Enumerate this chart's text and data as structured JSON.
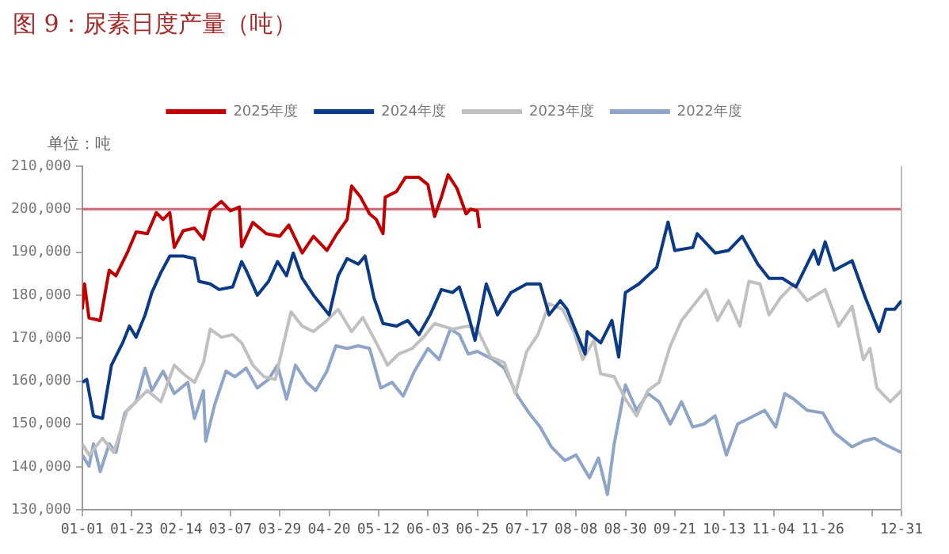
{
  "chart_data": {
    "type": "line",
    "title": "图 9：尿素日度产量（吨）",
    "annotations": [
      "单位：吨"
    ],
    "legend": "top",
    "marker": "none",
    "grid": false,
    "xlim": [
      "--01-01",
      "--12-31"
    ],
    "xticks": [
      {
        "value": "--01-01",
        "label": "01-01"
      },
      {
        "value": "--01-23",
        "label": "01-23"
      },
      {
        "value": "--02-14",
        "label": "02-14"
      },
      {
        "value": "--03-07",
        "label": "03-07"
      },
      {
        "value": "--03-29",
        "label": "03-29"
      },
      {
        "value": "--04-20",
        "label": "04-20"
      },
      {
        "value": "--05-12",
        "label": "05-12"
      },
      {
        "value": "--06-03",
        "label": "06-03"
      },
      {
        "value": "--06-25",
        "label": "06-25"
      },
      {
        "value": "--07-17",
        "label": "07-17"
      },
      {
        "value": "--08-08",
        "label": "08-08"
      },
      {
        "value": "--08-30",
        "label": "08-30"
      },
      {
        "value": "--09-21",
        "label": "09-21"
      },
      {
        "value": "--10-13",
        "label": "10-13"
      },
      {
        "value": "--11-04",
        "label": "11-04"
      },
      {
        "value": "--11-26",
        "label": "11-26"
      },
      {
        "value": "--12-18",
        "label": null
      },
      {
        "value": "--12-31",
        "label": "12-31"
      }
    ],
    "ylim": [
      130000,
      210000
    ],
    "yticks": [
      {
        "value": 130000,
        "label": "130,000"
      },
      {
        "value": 140000,
        "label": "140,000"
      },
      {
        "value": 150000,
        "label": "150,000"
      },
      {
        "value": 160000,
        "label": "160,000"
      },
      {
        "value": 170000,
        "label": "170,000"
      },
      {
        "value": 180000,
        "label": "180,000"
      },
      {
        "value": 190000,
        "label": "190,000"
      },
      {
        "value": 200000,
        "label": "200,000"
      },
      {
        "value": 210000,
        "label": "210,000"
      }
    ],
    "ref_lines": [
      {
        "axis": "y",
        "value": 200000,
        "color": "#cc6670"
      }
    ],
    "series": [
      {
        "name": "2025年度",
        "color": "#c00000",
        "x": [
          "--01-01",
          "--01-02",
          "--01-04",
          "--01-09",
          "--01-13",
          "--01-16",
          "--01-21",
          "--01-25",
          "--01-30",
          "--02-03",
          "--02-06",
          "--02-09",
          "--02-11",
          "--02-15",
          "--02-20",
          "--02-24",
          "--02-27",
          "--03-03",
          "--03-07",
          "--03-11",
          "--03-12",
          "--03-17",
          "--03-23",
          "--03-29",
          "--04-02",
          "--04-08",
          "--04-13",
          "--04-19",
          "--04-23",
          "--04-28",
          "--04-30",
          "--05-04",
          "--05-08",
          "--05-11",
          "--05-14",
          "--05-15",
          "--05-20",
          "--05-24",
          "--05-30",
          "--06-03",
          "--06-06",
          "--06-09",
          "--06-12",
          "--06-16",
          "--06-20",
          "--06-22",
          "--06-25",
          "--06-26"
        ],
        "values": [
          176700,
          182600,
          174700,
          174100,
          185800,
          184500,
          189800,
          194700,
          194300,
          199200,
          197600,
          199200,
          191100,
          195000,
          195600,
          193000,
          199600,
          201800,
          199600,
          200500,
          191300,
          196900,
          194300,
          193700,
          196300,
          189800,
          193700,
          190400,
          193900,
          197600,
          205400,
          202800,
          198900,
          197600,
          194300,
          202800,
          204100,
          207400,
          207400,
          205700,
          198300,
          202800,
          208000,
          204800,
          198900,
          200000,
          199600,
          195600
        ]
      },
      {
        "name": "2024年度",
        "color": "#0b3a86",
        "x": [
          "--01-01",
          "--01-03",
          "--01-06",
          "--01-10",
          "--01-14",
          "--01-19",
          "--01-22",
          "--01-25",
          "--01-29",
          "--02-01",
          "--02-05",
          "--02-09",
          "--02-15",
          "--02-20",
          "--02-22",
          "--02-27",
          "--03-02",
          "--03-08",
          "--03-12",
          "--03-14",
          "--03-19",
          "--03-24",
          "--03-28",
          "--04-01",
          "--04-04",
          "--04-08",
          "--04-13",
          "--04-20",
          "--04-24",
          "--04-28",
          "--05-03",
          "--05-06",
          "--05-10",
          "--05-14",
          "--05-20",
          "--05-25",
          "--05-30",
          "--06-04",
          "--06-09",
          "--06-14",
          "--06-17",
          "--06-21",
          "--06-24",
          "--06-29",
          "--07-04",
          "--07-10",
          "--07-17",
          "--07-23",
          "--07-27",
          "--08-01",
          "--08-04",
          "--08-12",
          "--08-13",
          "--08-19",
          "--08-24",
          "--08-27",
          "--08-30",
          "--09-05",
          "--09-13",
          "--09-18",
          "--09-21",
          "--09-29",
          "--10-01",
          "--10-09",
          "--10-15",
          "--10-21",
          "--10-28",
          "--11-02",
          "--11-08",
          "--11-14",
          "--11-22",
          "--11-24",
          "--11-27",
          "--12-01",
          "--12-09",
          "--12-15",
          "--12-21",
          "--12-24",
          "--12-28",
          "--12-31"
        ],
        "values": [
          159700,
          160400,
          151900,
          151300,
          163700,
          168900,
          172800,
          170200,
          175400,
          180600,
          185200,
          189100,
          189100,
          188500,
          183200,
          182600,
          181300,
          181900,
          187800,
          185800,
          180000,
          183200,
          187800,
          184500,
          189800,
          183900,
          180000,
          175400,
          184500,
          188500,
          187200,
          189100,
          179300,
          173400,
          172800,
          174100,
          170800,
          175400,
          181300,
          180600,
          181900,
          175400,
          169500,
          182600,
          175400,
          180600,
          182600,
          182600,
          175400,
          178700,
          176700,
          166300,
          171500,
          168900,
          174100,
          165600,
          180600,
          182600,
          186500,
          197000,
          190400,
          191100,
          194300,
          189800,
          190400,
          193700,
          187200,
          183900,
          183900,
          181900,
          190400,
          187200,
          192400,
          185800,
          188000,
          179300,
          171500,
          176700,
          176700,
          178700
        ]
      },
      {
        "name": "2023年度",
        "color": "#c0c0c0",
        "x": [
          "--01-01",
          "--01-04",
          "--01-10",
          "--01-15",
          "--01-21",
          "--01-25",
          "--01-30",
          "--02-05",
          "--02-11",
          "--02-15",
          "--02-20",
          "--02-24",
          "--02-27",
          "--03-03",
          "--03-08",
          "--03-12",
          "--03-17",
          "--03-22",
          "--03-27",
          "--03-29",
          "--04-03",
          "--04-08",
          "--04-13",
          "--04-19",
          "--04-24",
          "--04-30",
          "--05-05",
          "--05-11",
          "--05-16",
          "--05-21",
          "--05-27",
          "--06-01",
          "--06-06",
          "--06-14",
          "--06-21",
          "--06-25",
          "--07-01",
          "--07-07",
          "--07-12",
          "--07-17",
          "--07-22",
          "--07-27",
          "--08-02",
          "--08-07",
          "--08-11",
          "--08-16",
          "--08-19",
          "--08-25",
          "--08-30",
          "--09-04",
          "--09-09",
          "--09-14",
          "--09-19",
          "--09-24",
          "--09-29",
          "--10-05",
          "--10-10",
          "--10-15",
          "--10-20",
          "--10-24",
          "--10-29",
          "--11-02",
          "--11-07",
          "--11-13",
          "--11-19",
          "--11-27",
          "--12-03",
          "--12-09",
          "--12-14",
          "--12-17",
          "--12-20",
          "--12-26",
          "--12-31"
        ],
        "values": [
          145400,
          142800,
          146700,
          143400,
          153200,
          155200,
          157800,
          155200,
          163700,
          161700,
          159700,
          164300,
          172100,
          170200,
          170800,
          168900,
          163700,
          161000,
          160400,
          165000,
          176100,
          172800,
          171500,
          174100,
          176700,
          171500,
          174800,
          168900,
          163700,
          166300,
          167600,
          170200,
          173400,
          172100,
          172800,
          172100,
          165600,
          164300,
          157100,
          166900,
          170800,
          178000,
          176700,
          171500,
          165000,
          169500,
          161700,
          161000,
          155800,
          151900,
          157800,
          159700,
          168200,
          174100,
          177400,
          181300,
          174100,
          178700,
          172800,
          183200,
          182600,
          175400,
          179300,
          182600,
          178700,
          181300,
          172800,
          177400,
          165000,
          167600,
          158400,
          155200,
          157800
        ]
      },
      {
        "name": "2022年度",
        "color": "#8ea5c8",
        "x": [
          "--01-01",
          "--01-04",
          "--01-06",
          "--01-09",
          "--01-13",
          "--01-16",
          "--01-20",
          "--01-25",
          "--01-29",
          "--02-01",
          "--02-06",
          "--02-11",
          "--02-17",
          "--02-20",
          "--02-24",
          "--02-25",
          "--02-29",
          "--03-05",
          "--03-09",
          "--03-14",
          "--03-19",
          "--03-24",
          "--03-28",
          "--04-01",
          "--04-05",
          "--04-10",
          "--04-14",
          "--04-19",
          "--04-23",
          "--04-28",
          "--05-03",
          "--05-08",
          "--05-13",
          "--05-18",
          "--05-23",
          "--05-28",
          "--06-03",
          "--06-08",
          "--06-13",
          "--06-17",
          "--06-21",
          "--06-25",
          "--07-02",
          "--07-07",
          "--07-13",
          "--07-18",
          "--07-23",
          "--07-28",
          "--08-03",
          "--08-08",
          "--08-14",
          "--08-18",
          "--08-22",
          "--08-25",
          "--08-30",
          "--09-04",
          "--09-09",
          "--09-14",
          "--09-19",
          "--09-24",
          "--09-29",
          "--10-04",
          "--10-09",
          "--10-14",
          "--10-19",
          "--10-24",
          "--10-31",
          "--11-05",
          "--11-09",
          "--11-13",
          "--11-19",
          "--11-26",
          "--12-01",
          "--12-09",
          "--12-14",
          "--12-19",
          "--12-23",
          "--12-31"
        ],
        "values": [
          142800,
          140200,
          145400,
          138900,
          145400,
          143400,
          152600,
          155200,
          163000,
          157800,
          162300,
          157100,
          159700,
          151300,
          157800,
          146000,
          154500,
          162300,
          161000,
          163000,
          158400,
          160400,
          163700,
          155800,
          163700,
          159700,
          157800,
          162300,
          168200,
          167600,
          168200,
          167600,
          158400,
          159700,
          156500,
          162300,
          167600,
          165000,
          172100,
          170800,
          166300,
          166900,
          165000,
          163000,
          156500,
          152600,
          149300,
          144700,
          141500,
          142800,
          137500,
          142100,
          133600,
          145400,
          159100,
          153200,
          157100,
          155200,
          150000,
          155200,
          149300,
          150000,
          151900,
          142800,
          150000,
          151300,
          153200,
          149300,
          157100,
          155800,
          153200,
          152600,
          148000,
          144700,
          146000,
          146700,
          145400,
          143400
        ]
      }
    ]
  }
}
